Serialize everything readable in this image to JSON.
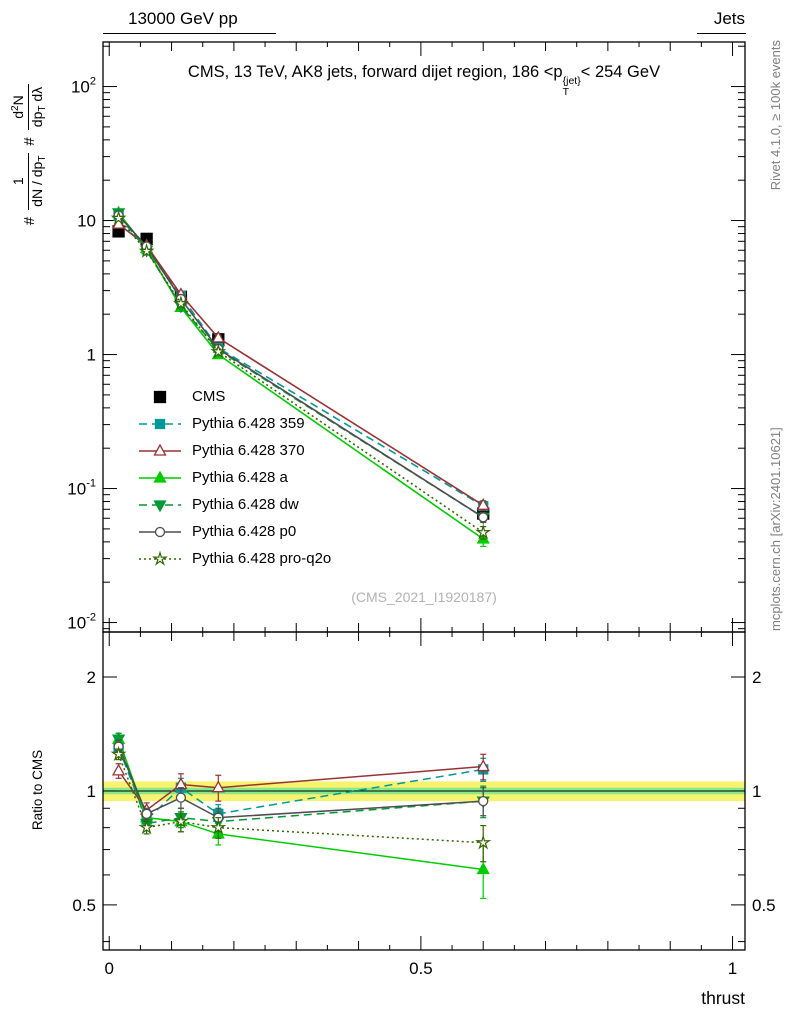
{
  "header": {
    "left": "13000 GeV pp",
    "right": "Jets"
  },
  "title": {
    "pre": "CMS, 13 TeV, AK8 jets, forward dijet region, 186 <p",
    "sup": "{jet}",
    "sub": "T",
    "post": "< 254 GeV"
  },
  "ylabel_main": {
    "hash1": "#",
    "frac1_num": "1",
    "frac1_den_main": "dN / dp",
    "frac1_den_sub": "T",
    "hash2": "#",
    "frac2_num_a": "d",
    "frac2_num_sup": "2",
    "frac2_num_b": "N",
    "frac2_den_a": "dp",
    "frac2_den_sub": "T",
    "frac2_den_b": " dλ"
  },
  "ylabel_ratio": "Ratio to CMS",
  "xlabel": "thrust",
  "watermark": "(CMS_2021_I1920187)",
  "side_text_top": "Rivet 4.1.0, ≥ 100k events",
  "side_text_bottom": "mcplots.cern.ch [arXiv:2401.10621]",
  "chart_data": {
    "type": "line",
    "title": "CMS, 13 TeV, AK8 jets, forward dijet region, 186 < pT{jet} < 254 GeV",
    "xlabel": "thrust",
    "ylabel": "1/(dN/dpT) d²N/(dpT dλ)",
    "ratio_ylabel": "Ratio to CMS",
    "x": [
      0.015,
      0.06,
      0.115,
      0.175,
      0.6
    ],
    "x_axis": {
      "min": -0.01,
      "max": 1.02,
      "major_ticks": [
        0,
        0.5,
        1
      ],
      "tick_labels": [
        "0",
        "0.5",
        "1"
      ],
      "minor_step": 0.05
    },
    "y_main_axis": {
      "scale": "log",
      "min": 0.0085,
      "max": 215,
      "decades": [
        2,
        1,
        0,
        -1,
        -2
      ]
    },
    "y_ratio_axis": {
      "scale": "log",
      "min": 0.38,
      "max": 2.63,
      "ticks": [
        0.5,
        1,
        2
      ],
      "tick_labels": [
        "0.5",
        "1",
        "2"
      ],
      "minor_ticks": [
        0.4,
        0.6,
        0.7,
        0.8,
        0.9
      ]
    },
    "ratio_band": {
      "yellow": [
        0.94,
        1.06
      ],
      "green": [
        0.98,
        1.02
      ],
      "center": 1,
      "yellow_color": "#f7f36e",
      "green_color": "#8ae88a"
    },
    "series": [
      {
        "name": "CMS",
        "color": "#000000",
        "line": "none",
        "marker": "square",
        "filled": true,
        "values": [
          8.3,
          7.3,
          2.7,
          1.3,
          0.065
        ],
        "errors": [
          0.45,
          0.4,
          0.16,
          0.08,
          0.006
        ],
        "ratio": null,
        "ratio_errors": null
      },
      {
        "name": "Pythia 6.428 359",
        "color": "#009999",
        "line": "dashed",
        "marker": "square",
        "filled": true,
        "values": [
          10.8,
          6.1,
          2.75,
          1.12,
          0.074
        ],
        "errors": [
          0.25,
          0.15,
          0.09,
          0.05,
          0.005
        ],
        "ratio": [
          1.3,
          0.84,
          1.02,
          0.87,
          1.14
        ],
        "ratio_errors": [
          0.05,
          0.04,
          0.06,
          0.05,
          0.08
        ]
      },
      {
        "name": "Pythia 6.428 370",
        "color": "#993333",
        "line": "solid",
        "marker": "triangle",
        "filled": false,
        "values": [
          9.4,
          6.5,
          2.8,
          1.33,
          0.075
        ],
        "errors": [
          0.3,
          0.2,
          0.1,
          0.06,
          0.006
        ],
        "ratio": [
          1.13,
          0.89,
          1.04,
          1.02,
          1.16
        ],
        "ratio_errors": [
          0.05,
          0.04,
          0.07,
          0.08,
          0.09
        ]
      },
      {
        "name": "Pythia 6.428 a",
        "color": "#00cc00",
        "line": "solid",
        "marker": "triangle",
        "filled": true,
        "values": [
          11.4,
          6.2,
          2.25,
          1.0,
          0.042
        ],
        "errors": [
          0.3,
          0.2,
          0.08,
          0.05,
          0.005
        ],
        "ratio": [
          1.37,
          0.85,
          0.83,
          0.77,
          0.62
        ],
        "ratio_errors": [
          0.05,
          0.03,
          0.05,
          0.05,
          0.1
        ]
      },
      {
        "name": "Pythia 6.428 dw",
        "color": "#009933",
        "line": "dashed",
        "marker": "triangle-down",
        "filled": true,
        "values": [
          11.4,
          6.0,
          2.3,
          1.08,
          0.061
        ],
        "errors": [
          0.3,
          0.2,
          0.08,
          0.05,
          0.005
        ],
        "ratio": [
          1.37,
          0.82,
          0.85,
          0.83,
          0.94
        ],
        "ratio_errors": [
          0.05,
          0.03,
          0.05,
          0.05,
          0.09
        ]
      },
      {
        "name": "Pythia 6.428 p0",
        "color": "#4d4d4d",
        "line": "solid",
        "marker": "circle",
        "filled": false,
        "values": [
          10.9,
          6.4,
          2.6,
          1.1,
          0.061
        ],
        "errors": [
          0.3,
          0.2,
          0.09,
          0.05,
          0.005
        ],
        "ratio": [
          1.31,
          0.87,
          0.96,
          0.85,
          0.94
        ],
        "ratio_errors": [
          0.05,
          0.03,
          0.06,
          0.05,
          0.08
        ]
      },
      {
        "name": "Pythia 6.428 pro-q2o",
        "color": "#336600",
        "line": "dotted",
        "marker": "star",
        "filled": false,
        "values": [
          10.4,
          5.9,
          2.4,
          1.05,
          0.047
        ],
        "errors": [
          0.3,
          0.2,
          0.08,
          0.05,
          0.005
        ],
        "ratio": [
          1.25,
          0.8,
          0.83,
          0.8,
          0.73
        ],
        "ratio_errors": [
          0.04,
          0.03,
          0.05,
          0.05,
          0.08
        ]
      }
    ]
  }
}
